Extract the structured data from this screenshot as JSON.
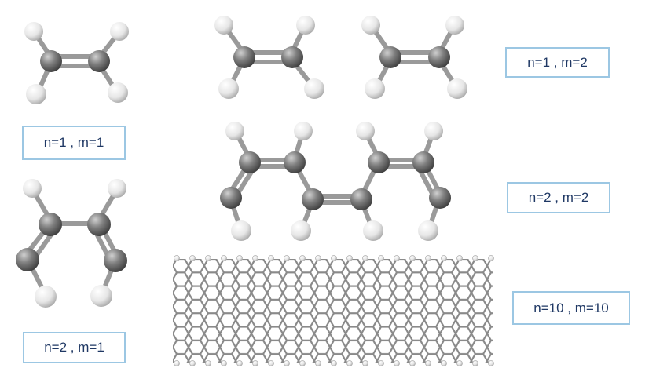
{
  "labels": {
    "n1_m1": "n=1 , m=1",
    "n1_m2": "n=1 , m=2",
    "n2_m2": "n=2 , m=2",
    "n10_m10": "n=10 , m=10",
    "n2_m1": "n=2 , m=1"
  },
  "colors": {
    "carbon": "#7a7a7a",
    "hydrogen": "#f2f2f2",
    "bond": "#9a9a9a",
    "label_border": "#9cc7e3",
    "label_text": "#1f3864"
  }
}
